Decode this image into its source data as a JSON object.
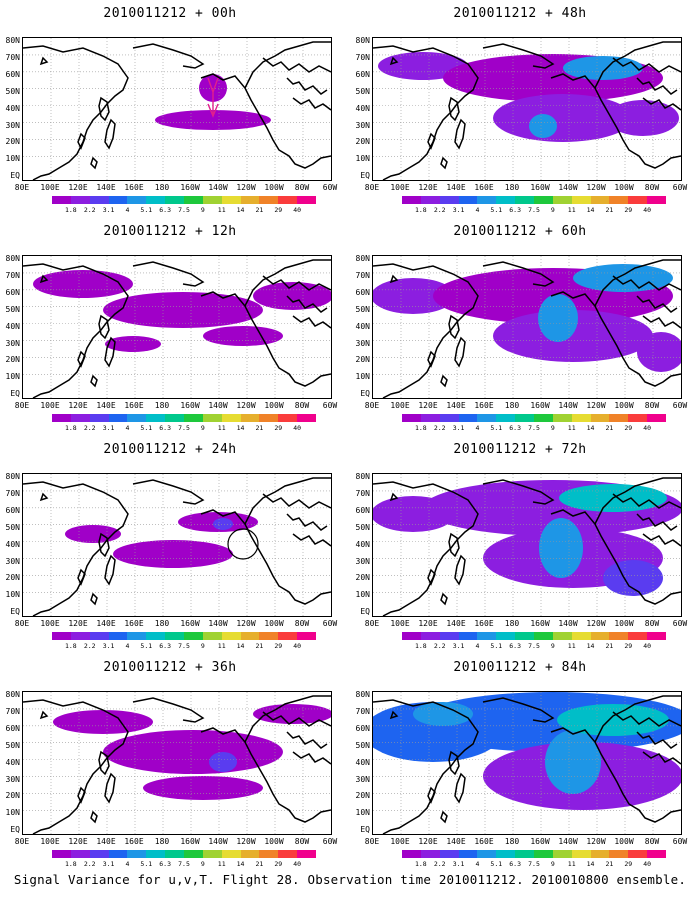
{
  "panels": [
    {
      "title": "2010011212 + 00h",
      "intensity": 0,
      "circle": false,
      "arrow": true
    },
    {
      "title": "2010011212 + 48h",
      "intensity": 4,
      "circle": false,
      "arrow": false
    },
    {
      "title": "2010011212 + 12h",
      "intensity": 1,
      "circle": false,
      "arrow": false
    },
    {
      "title": "2010011212 + 60h",
      "intensity": 5,
      "circle": false,
      "arrow": false
    },
    {
      "title": "2010011212 + 24h",
      "intensity": 2,
      "circle": true,
      "arrow": false
    },
    {
      "title": "2010011212 + 72h",
      "intensity": 6,
      "circle": false,
      "arrow": false
    },
    {
      "title": "2010011212 + 36h",
      "intensity": 3,
      "circle": false,
      "arrow": false
    },
    {
      "title": "2010011212 + 84h",
      "intensity": 7,
      "circle": false,
      "arrow": false
    }
  ],
  "lat_labels": [
    "80N",
    "70N",
    "60N",
    "50N",
    "40N",
    "30N",
    "20N",
    "10N",
    "EQ"
  ],
  "lon_labels": [
    "80E",
    "100E",
    "120E",
    "140E",
    "160E",
    "180",
    "160W",
    "140W",
    "120W",
    "100W",
    "80W",
    "60W"
  ],
  "legend": {
    "labels": [
      "1.8",
      "2.2",
      "3.1",
      "4",
      "5.1",
      "6.3",
      "7.5",
      "9",
      "11",
      "14",
      "21",
      "29",
      "40"
    ],
    "colors": [
      "#a000c8",
      "#8c1ee0",
      "#5a3cf0",
      "#1e64f0",
      "#1e96e6",
      "#00bec8",
      "#00c88c",
      "#1ec83c",
      "#a0d232",
      "#e6dc32",
      "#e6af2d",
      "#f08228",
      "#fa3c3c",
      "#f0008c"
    ]
  },
  "footer": "Signal Variance for u,v,T. Flight 28. Observation time 2010011212. 2010010800 ensemble."
}
